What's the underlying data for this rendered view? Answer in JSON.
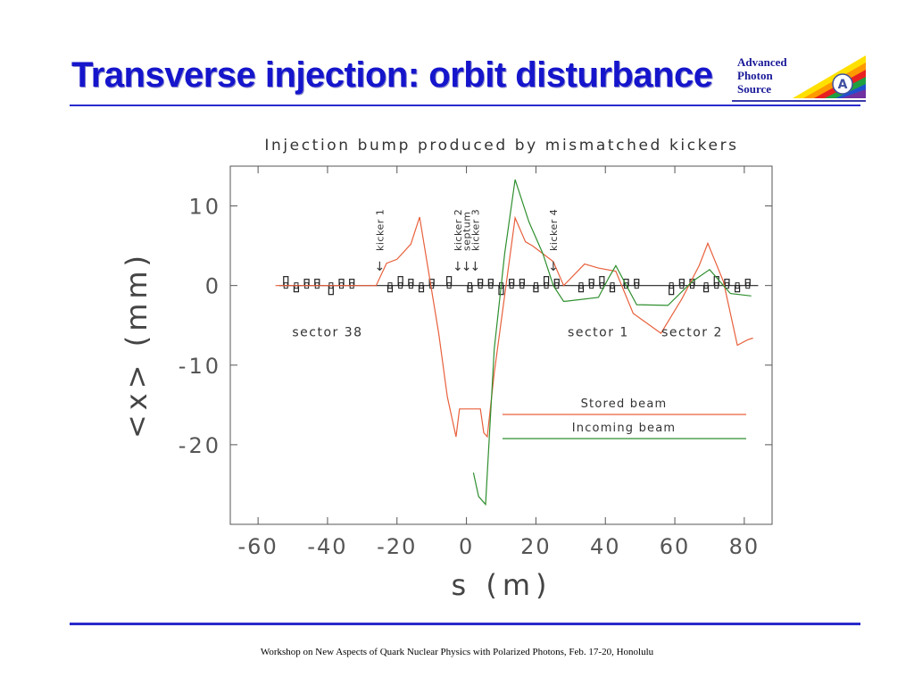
{
  "slide": {
    "title": "Transverse injection: orbit disturbance",
    "footer": "Workshop on New Aspects of Quark Nuclear Physics with Polarized Photons, Feb. 17-20, Honolulu",
    "logo_lines": [
      "Advanced",
      "Photon",
      "Source"
    ],
    "accent_color": "#1515cc"
  },
  "chart_data": {
    "type": "line",
    "title": "Injection bump produced by mismatched kickers",
    "xlabel": "s (m)",
    "ylabel": "<x> (mm)",
    "xlim": [
      -68,
      88
    ],
    "ylim": [
      -30,
      15
    ],
    "xticks": [
      -60,
      -40,
      -20,
      0,
      20,
      40,
      60,
      80
    ],
    "xtick_labels": [
      "-60",
      "-40",
      "-20",
      "0",
      "20",
      "40",
      "60",
      "80"
    ],
    "yticks": [
      -20,
      -10,
      0,
      10
    ],
    "ytick_labels": [
      "-20",
      "-10",
      "0",
      "10"
    ],
    "grid": false,
    "legend_placement": "lower-right",
    "series": [
      {
        "name": "Stored beam",
        "color": "#e8603c",
        "x": [
          -55,
          -26,
          -23,
          -20,
          -16,
          -13.5,
          -8,
          -5.5,
          -3,
          -2,
          4,
          5,
          6,
          8,
          14,
          17,
          19,
          25,
          28,
          34,
          38,
          43,
          48,
          56,
          62,
          67,
          69.5,
          74,
          78,
          81,
          82.5
        ],
        "y": [
          0,
          0,
          2.8,
          3.3,
          5.2,
          8.6,
          -6,
          -14,
          -19,
          -15.5,
          -15.5,
          -18.5,
          -19,
          -11,
          8.5,
          5.5,
          5,
          3,
          0,
          2.7,
          2.2,
          1.8,
          -3.5,
          -6,
          -1.7,
          2.5,
          5.3,
          0.5,
          -7.5,
          -6.8,
          -6.6
        ]
      },
      {
        "name": "Incoming beam",
        "color": "#2f8f2f",
        "x": [
          2,
          3.5,
          5.5,
          8,
          11,
          14,
          18,
          22,
          25,
          28,
          38,
          41,
          43,
          49,
          58,
          65,
          70,
          76,
          82
        ],
        "y": [
          -23.5,
          -26.5,
          -27.5,
          -8,
          4,
          13.3,
          8,
          4,
          0,
          -2,
          -1.5,
          1,
          2.5,
          -2.4,
          -2.5,
          0.5,
          2,
          -1,
          -1.3
        ]
      }
    ],
    "annotations": {
      "kickers": [
        {
          "label": "kicker 1",
          "x": -25
        },
        {
          "label": "kicker 2",
          "x": -2.5
        },
        {
          "label": "septum",
          "x": 0
        },
        {
          "label": "kicker 3",
          "x": 2.5
        },
        {
          "label": "kicker 4",
          "x": 25
        }
      ],
      "sectors": [
        {
          "label": "sector 38",
          "x": -40
        },
        {
          "label": "sector 1",
          "x": 38
        },
        {
          "label": "sector 2",
          "x": 65
        }
      ]
    }
  }
}
